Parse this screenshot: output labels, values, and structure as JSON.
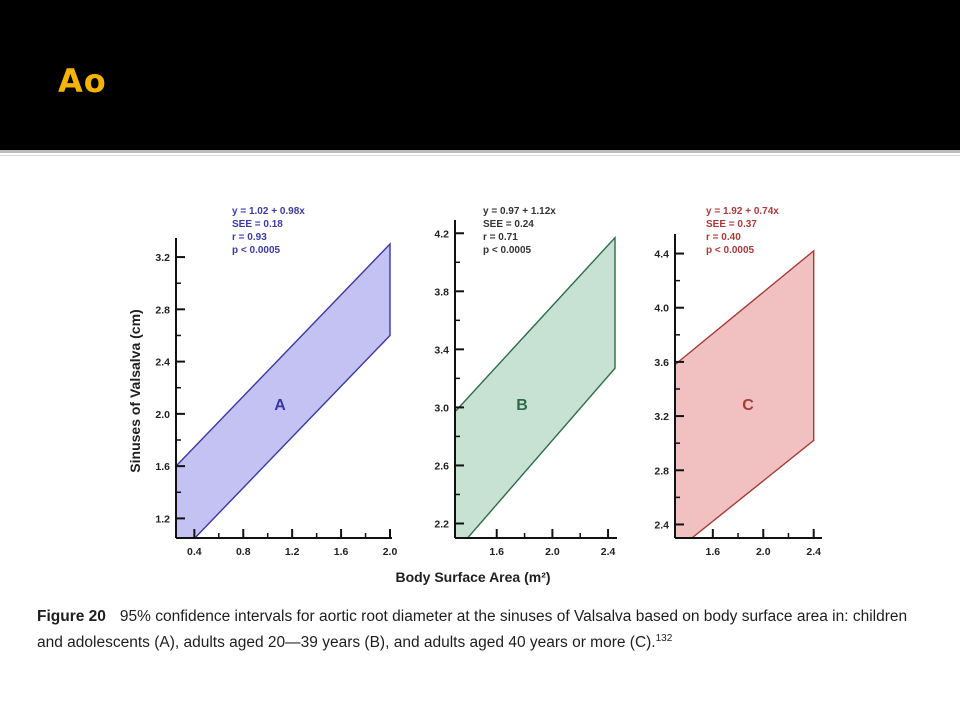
{
  "slide": {
    "title": "Ao",
    "title_color": "#f5b400",
    "background_header": "#000000"
  },
  "caption": {
    "label": "Figure 20",
    "text": "95% confidence intervals for aortic root diameter at the sinuses of Valsalva based on body surface area in: children and adolescents (A), adults aged 20—39 years (B), and adults aged 40 years or more (C).",
    "reference": "132"
  },
  "chart_data": [
    {
      "type": "area",
      "panel_label": "A",
      "fill": "#c3c2f2",
      "stroke": "#3a37a0",
      "stats_color": "#3b3aa6",
      "stats": [
        "y = 1.02 + 0.98x",
        "SEE = 0.18",
        "r = 0.93",
        "p < 0.0005"
      ],
      "ylabel": "Sinuses of Valsalva (cm)",
      "xlabel": "",
      "xlim": [
        0.25,
        2.0
      ],
      "ylim": [
        1.05,
        3.3
      ],
      "xticks": [
        0.4,
        0.8,
        1.2,
        1.6,
        2.0
      ],
      "xtick_labels": [
        "0.4",
        "0.8",
        "1.2",
        "1.6",
        "2.0"
      ],
      "yticks": [
        1.2,
        1.6,
        2.0,
        2.4,
        2.8,
        3.2
      ],
      "ytick_labels": [
        "1.2",
        "1.6",
        "2.0",
        "2.4",
        "2.8",
        "3.2"
      ],
      "band": {
        "x": [
          0.25,
          2.0
        ],
        "upper": [
          1.6,
          3.3
        ],
        "lower": [
          0.9,
          2.6
        ]
      }
    },
    {
      "type": "area",
      "panel_label": "B",
      "fill": "#c7e2d2",
      "stroke": "#2e6b4a",
      "stats_color": "#333333",
      "stats": [
        "y = 0.97 + 1.12x",
        "SEE = 0.24",
        "r = 0.71",
        "p < 0.0005"
      ],
      "ylabel": "",
      "xlabel": "",
      "xlim": [
        1.3,
        2.45
      ],
      "ylim": [
        2.1,
        4.25
      ],
      "xticks": [
        1.6,
        2.0,
        2.4
      ],
      "xtick_labels": [
        "1.6",
        "2.0",
        "2.4"
      ],
      "yticks": [
        2.2,
        2.6,
        3.0,
        3.4,
        3.8,
        4.2
      ],
      "ytick_labels": [
        "2.2",
        "2.6",
        "3.0",
        "3.4",
        "3.8",
        "4.2"
      ],
      "band": {
        "x": [
          1.3,
          2.45
        ],
        "upper": [
          2.97,
          4.17
        ],
        "lower": [
          2.0,
          3.27
        ]
      }
    },
    {
      "type": "area",
      "panel_label": "C",
      "fill": "#f1c1c1",
      "stroke": "#a83a3a",
      "stats_color": "#a83a3a",
      "stats": [
        "y = 1.92 + 0.74x",
        "SEE = 0.37",
        "r = 0.40",
        "p < 0.0005"
      ],
      "ylabel": "",
      "xlabel": "Body Surface Area (m²)",
      "xlim": [
        1.3,
        2.45
      ],
      "ylim": [
        2.3,
        4.5
      ],
      "xticks": [
        1.6,
        2.0,
        2.4
      ],
      "xtick_labels": [
        "1.6",
        "2.0",
        "2.4"
      ],
      "yticks": [
        2.4,
        2.8,
        3.2,
        3.6,
        4.0,
        4.4
      ],
      "ytick_labels": [
        "2.4",
        "2.8",
        "3.2",
        "3.6",
        "4.0",
        "4.4"
      ],
      "band": {
        "x": [
          1.3,
          2.4
        ],
        "upper": [
          3.58,
          4.42
        ],
        "lower": [
          2.2,
          3.02
        ]
      }
    }
  ]
}
